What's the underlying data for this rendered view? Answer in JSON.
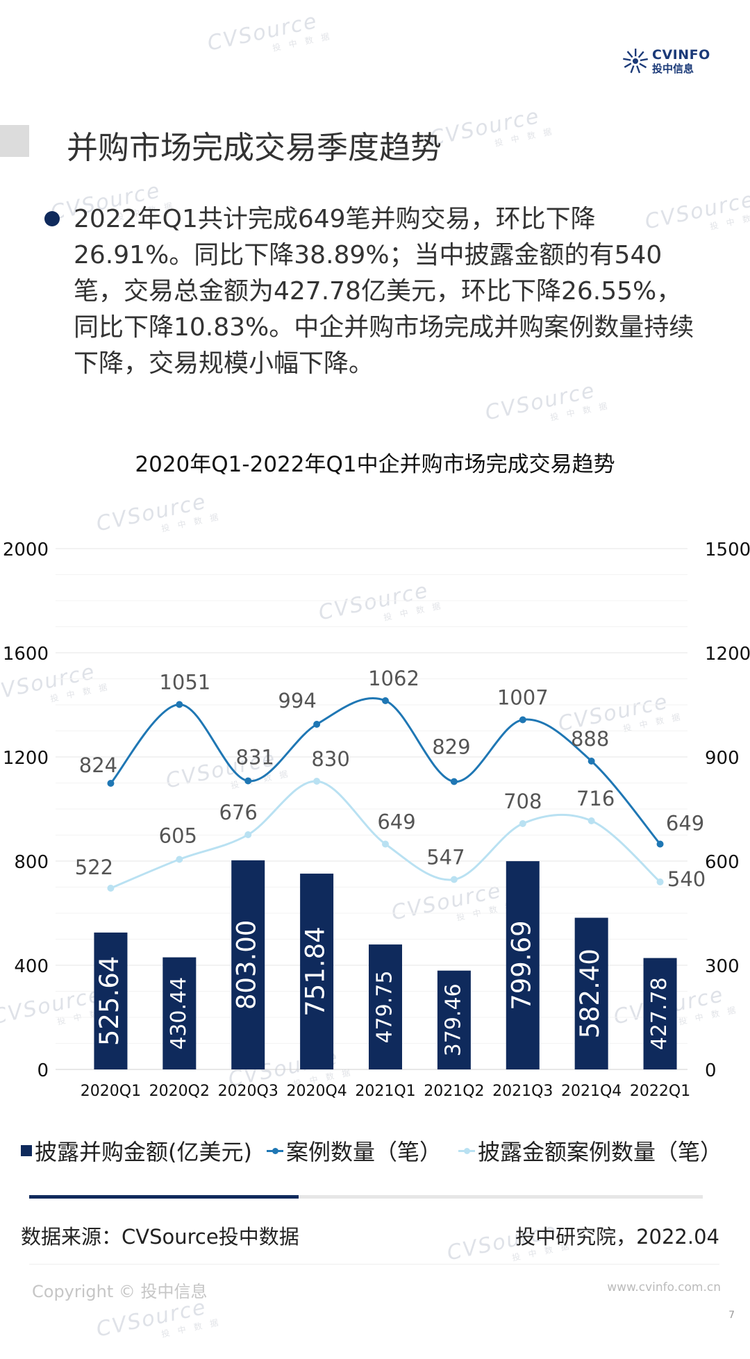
{
  "watermark": {
    "brand": "CVSource",
    "sub": "投 中 数 据"
  },
  "logo": {
    "name_en": "CVINFO",
    "name_cn": "投中信息"
  },
  "page_title": "并购市场完成交易季度趋势",
  "summary": "2022年Q1共计完成649笔并购交易，环比下降26.91%。同比下降38.89%；当中披露金额的有540笔，交易总金额为427.78亿美元，环比下降26.55%，同比下降10.83%。中企并购市场完成并购案例数量持续下降，交易规模小幅下降。",
  "chart_data": {
    "type": "bar",
    "title": "2020年Q1-2022年Q1中企并购市场完成交易趋势",
    "categories": [
      "2020Q1",
      "2020Q2",
      "2020Q3",
      "2020Q4",
      "2021Q1",
      "2021Q2",
      "2021Q3",
      "2021Q4",
      "2022Q1"
    ],
    "series": [
      {
        "name": "披露并购金额(亿美元)",
        "type": "bar",
        "axis": "left",
        "color": "#0f2a5c",
        "values": [
          525.64,
          430.44,
          803.0,
          751.84,
          479.75,
          379.46,
          799.69,
          582.4,
          427.78
        ],
        "labels": [
          "525.64",
          "430.44",
          "803.00",
          "751.84",
          "479.75",
          "379.46",
          "799.69",
          "582.40",
          "427.78"
        ]
      },
      {
        "name": "案例数量（笔）",
        "type": "line",
        "axis": "right",
        "color": "#1f77b4",
        "values": [
          824,
          1051,
          831,
          994,
          1062,
          829,
          1007,
          888,
          649
        ]
      },
      {
        "name": "披露金额案例数量（笔）",
        "type": "line",
        "axis": "right",
        "color": "#b9e1f2",
        "values": [
          522,
          605,
          676,
          830,
          649,
          547,
          708,
          716,
          540
        ]
      }
    ],
    "y_left": {
      "min": 0,
      "max": 2000,
      "ticks": [
        "0",
        "400",
        "800",
        "1200",
        "1600",
        "2000"
      ]
    },
    "y_right": {
      "min": 0,
      "max": 1500,
      "ticks": [
        "0",
        "300",
        "600",
        "900",
        "1200",
        "1500"
      ]
    },
    "grid": true,
    "legend_position": "bottom"
  },
  "legend": {
    "bar_label": "披露并购金额(亿美元)",
    "line1_label": "案例数量（笔）",
    "line2_label": "披露金额案例数量（笔）"
  },
  "progress": {
    "fraction": 0.4
  },
  "source": "数据来源：CVSource投中数据",
  "org_date": "投中研究院，2022.04",
  "copyright": "Copyright © 投中信息",
  "website": "www.cvinfo.com.cn",
  "page_number": "7",
  "colors": {
    "navy": "#0f2a5c",
    "line_dark": "#1f77b4",
    "line_light": "#b9e1f2",
    "accent": "#1b3a78"
  }
}
